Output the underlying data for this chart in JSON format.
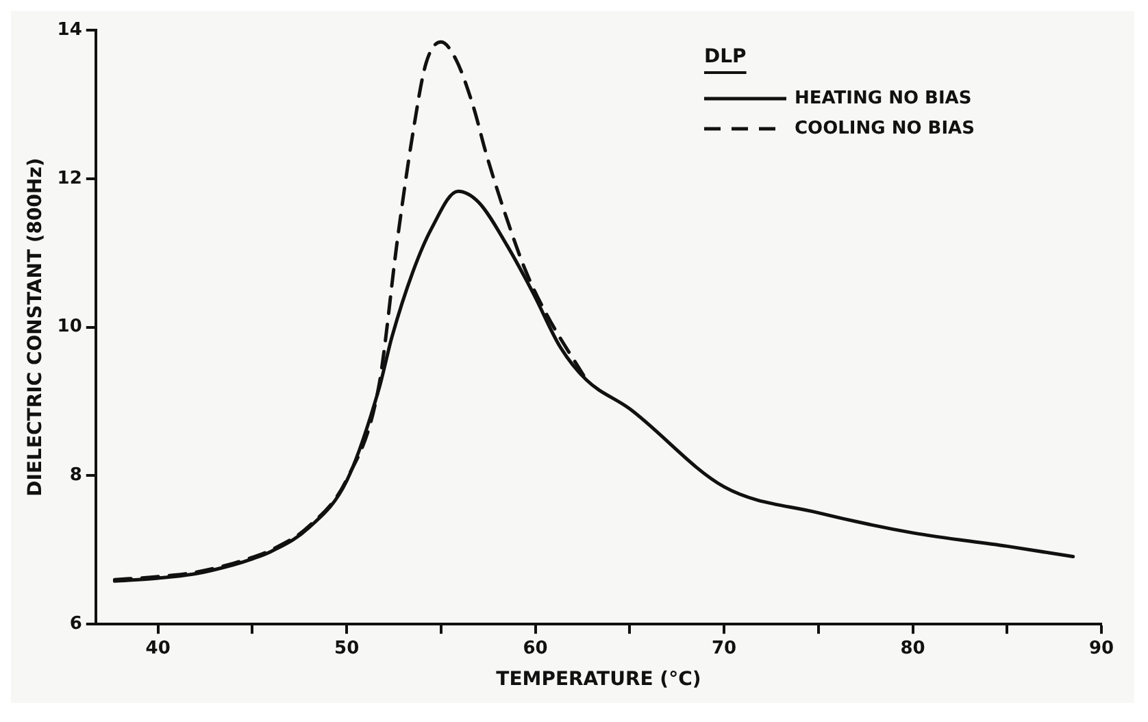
{
  "chart_data": {
    "type": "line",
    "xlabel": "TEMPERATURE (°C)",
    "ylabel": "DIELECTRIC CONSTANT (800Hz)",
    "legend_title": "DLP",
    "legend": "top right",
    "grid": false,
    "marker": "none",
    "xlim": [
      36.7,
      90
    ],
    "xticks": [
      40,
      {
        "value": 45,
        "label": null
      },
      50,
      {
        "value": 55,
        "label": null
      },
      60,
      {
        "value": 65,
        "label": null
      },
      70,
      {
        "value": 75,
        "label": null
      },
      80,
      {
        "value": 85,
        "label": null
      },
      90
    ],
    "ylim": [
      6,
      14
    ],
    "yticks": [
      6,
      8,
      10,
      12,
      14
    ],
    "series": [
      {
        "name": "HEATING NO BIAS",
        "color": "#111111",
        "line_style": "solid",
        "x": [
          37.7,
          40,
          42,
          44,
          45,
          46,
          48,
          50,
          51.7,
          52.4,
          53.5,
          54.5,
          55.9,
          57,
          58.5,
          59.9,
          61.3,
          62.7,
          65,
          70,
          75,
          80,
          85,
          88.5
        ],
        "values": [
          6.58,
          6.62,
          6.68,
          6.8,
          6.88,
          6.98,
          7.3,
          7.93,
          9.16,
          9.87,
          10.74,
          11.33,
          11.83,
          11.68,
          11.1,
          10.45,
          9.74,
          9.29,
          8.9,
          7.85,
          7.5,
          7.23,
          7.05,
          6.91
        ]
      },
      {
        "name": "COOLING NO BIAS",
        "color": "#111111",
        "line_style": "dashed",
        "x": [
          37.7,
          40,
          42,
          44,
          45,
          46,
          48,
          50,
          51.7,
          52.7,
          53.5,
          54.2,
          55,
          55.8,
          56.7,
          57.4,
          58.5,
          59.5,
          60.6,
          62.7
        ],
        "values": [
          6.6,
          6.64,
          6.7,
          6.82,
          6.9,
          7.0,
          7.32,
          7.95,
          9.2,
          11.2,
          12.6,
          13.55,
          13.84,
          13.6,
          12.98,
          12.33,
          11.45,
          10.75,
          10.17,
          9.29
        ]
      }
    ]
  }
}
